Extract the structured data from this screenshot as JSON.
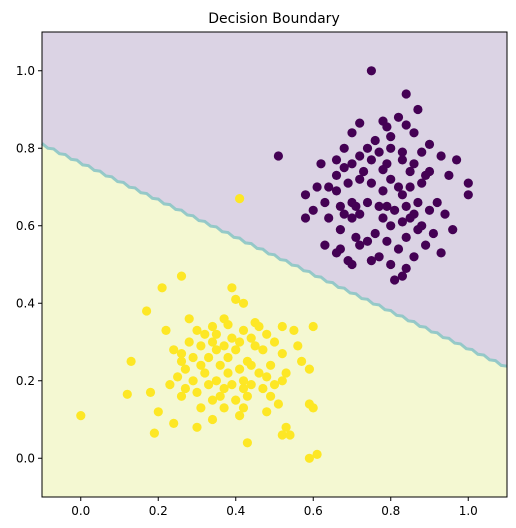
{
  "chart_data": {
    "type": "scatter",
    "title": "Decision Boundary",
    "xlabel": "",
    "ylabel": "",
    "xlim": [
      -0.1,
      1.1
    ],
    "ylim": [
      -0.1,
      1.1
    ],
    "grid": false,
    "x_ticks": [
      "0.0",
      "0.2",
      "0.4",
      "0.6",
      "0.8",
      "1.0"
    ],
    "y_ticks": [
      "0.0",
      "0.2",
      "0.4",
      "0.6",
      "0.8",
      "1.0"
    ],
    "boundary": {
      "line": [
        [
          -0.1,
          0.81
        ],
        [
          1.1,
          0.235
        ]
      ],
      "region_above_color": "#dbd3e4",
      "region_below_color": "#f4f8d2",
      "line_color": "#8cc5c5"
    },
    "series": [
      {
        "color": "#440154",
        "points": [
          [
            0.75,
            1.0
          ],
          [
            0.84,
            0.94
          ],
          [
            0.87,
            0.9
          ],
          [
            0.82,
            0.88
          ],
          [
            0.78,
            0.87
          ],
          [
            0.72,
            0.865
          ],
          [
            0.79,
            0.855
          ],
          [
            0.84,
            0.86
          ],
          [
            0.7,
            0.84
          ],
          [
            0.8,
            0.83
          ],
          [
            0.86,
            0.84
          ],
          [
            0.76,
            0.82
          ],
          [
            0.68,
            0.8
          ],
          [
            0.74,
            0.8
          ],
          [
            0.8,
            0.8
          ],
          [
            0.83,
            0.79
          ],
          [
            0.9,
            0.81
          ],
          [
            0.72,
            0.78
          ],
          [
            0.77,
            0.79
          ],
          [
            0.51,
            0.78
          ],
          [
            0.88,
            0.79
          ],
          [
            0.93,
            0.78
          ],
          [
            0.97,
            0.77
          ],
          [
            0.66,
            0.77
          ],
          [
            0.75,
            0.77
          ],
          [
            0.83,
            0.77
          ],
          [
            0.62,
            0.76
          ],
          [
            0.7,
            0.76
          ],
          [
            0.79,
            0.76
          ],
          [
            0.86,
            0.76
          ],
          [
            0.68,
            0.75
          ],
          [
            0.73,
            0.74
          ],
          [
            0.78,
            0.745
          ],
          [
            0.85,
            0.74
          ],
          [
            0.9,
            0.74
          ],
          [
            0.66,
            0.73
          ],
          [
            0.89,
            0.73
          ],
          [
            0.95,
            0.73
          ],
          [
            0.72,
            0.72
          ],
          [
            0.8,
            0.72
          ],
          [
            0.61,
            0.7
          ],
          [
            0.64,
            0.7
          ],
          [
            0.69,
            0.71
          ],
          [
            0.75,
            0.71
          ],
          [
            0.82,
            0.7
          ],
          [
            0.85,
            0.7
          ],
          [
            0.88,
            0.71
          ],
          [
            1.0,
            0.71
          ],
          [
            0.58,
            0.68
          ],
          [
            0.66,
            0.69
          ],
          [
            0.78,
            0.69
          ],
          [
            0.83,
            0.68
          ],
          [
            1.0,
            0.68
          ],
          [
            0.63,
            0.66
          ],
          [
            0.7,
            0.66
          ],
          [
            0.74,
            0.66
          ],
          [
            0.79,
            0.65
          ],
          [
            0.87,
            0.66
          ],
          [
            0.92,
            0.66
          ],
          [
            0.67,
            0.65
          ],
          [
            0.71,
            0.65
          ],
          [
            0.77,
            0.65
          ],
          [
            0.84,
            0.65
          ],
          [
            0.9,
            0.64
          ],
          [
            0.6,
            0.64
          ],
          [
            0.68,
            0.63
          ],
          [
            0.72,
            0.63
          ],
          [
            0.81,
            0.64
          ],
          [
            0.86,
            0.63
          ],
          [
            0.94,
            0.63
          ],
          [
            0.64,
            0.62
          ],
          [
            0.7,
            0.62
          ],
          [
            0.78,
            0.62
          ],
          [
            0.85,
            0.62
          ],
          [
            0.58,
            0.62
          ],
          [
            0.83,
            0.61
          ],
          [
            0.88,
            0.6
          ],
          [
            0.8,
            0.6
          ],
          [
            0.87,
            0.59
          ],
          [
            0.67,
            0.59
          ],
          [
            0.76,
            0.58
          ],
          [
            0.84,
            0.57
          ],
          [
            0.91,
            0.58
          ],
          [
            0.71,
            0.57
          ],
          [
            0.96,
            0.59
          ],
          [
            0.74,
            0.56
          ],
          [
            0.79,
            0.56
          ],
          [
            0.63,
            0.55
          ],
          [
            0.72,
            0.55
          ],
          [
            0.89,
            0.55
          ],
          [
            0.67,
            0.54
          ],
          [
            0.82,
            0.54
          ],
          [
            0.93,
            0.53
          ],
          [
            0.66,
            0.53
          ],
          [
            0.77,
            0.52
          ],
          [
            0.86,
            0.52
          ],
          [
            0.69,
            0.51
          ],
          [
            0.75,
            0.51
          ],
          [
            0.7,
            0.5
          ],
          [
            0.8,
            0.5
          ],
          [
            0.84,
            0.49
          ],
          [
            0.83,
            0.47
          ],
          [
            0.81,
            0.46
          ]
        ]
      },
      {
        "color": "#fde725",
        "points": [
          [
            0.41,
            0.67
          ],
          [
            0.26,
            0.47
          ],
          [
            0.21,
            0.44
          ],
          [
            0.39,
            0.44
          ],
          [
            0.4,
            0.41
          ],
          [
            0.17,
            0.38
          ],
          [
            0.42,
            0.4
          ],
          [
            0.28,
            0.36
          ],
          [
            0.37,
            0.36
          ],
          [
            0.45,
            0.35
          ],
          [
            0.52,
            0.34
          ],
          [
            0.34,
            0.34
          ],
          [
            0.38,
            0.345
          ],
          [
            0.46,
            0.34
          ],
          [
            0.3,
            0.33
          ],
          [
            0.22,
            0.33
          ],
          [
            0.32,
            0.32
          ],
          [
            0.42,
            0.33
          ],
          [
            0.48,
            0.32
          ],
          [
            0.55,
            0.33
          ],
          [
            0.35,
            0.32
          ],
          [
            0.39,
            0.31
          ],
          [
            0.44,
            0.31
          ],
          [
            0.6,
            0.34
          ],
          [
            0.5,
            0.3
          ],
          [
            0.28,
            0.3
          ],
          [
            0.34,
            0.3
          ],
          [
            0.41,
            0.3
          ],
          [
            0.24,
            0.28
          ],
          [
            0.31,
            0.29
          ],
          [
            0.37,
            0.29
          ],
          [
            0.45,
            0.29
          ],
          [
            0.26,
            0.27
          ],
          [
            0.35,
            0.28
          ],
          [
            0.4,
            0.28
          ],
          [
            0.47,
            0.28
          ],
          [
            0.56,
            0.29
          ],
          [
            0.52,
            0.27
          ],
          [
            0.29,
            0.26
          ],
          [
            0.33,
            0.26
          ],
          [
            0.38,
            0.26
          ],
          [
            0.43,
            0.25
          ],
          [
            0.13,
            0.25
          ],
          [
            0.26,
            0.25
          ],
          [
            0.31,
            0.24
          ],
          [
            0.36,
            0.24
          ],
          [
            0.44,
            0.24
          ],
          [
            0.49,
            0.24
          ],
          [
            0.57,
            0.25
          ],
          [
            0.27,
            0.23
          ],
          [
            0.41,
            0.23
          ],
          [
            0.59,
            0.23
          ],
          [
            0.32,
            0.22
          ],
          [
            0.38,
            0.22
          ],
          [
            0.46,
            0.22
          ],
          [
            0.53,
            0.22
          ],
          [
            0.25,
            0.21
          ],
          [
            0.29,
            0.2
          ],
          [
            0.35,
            0.2
          ],
          [
            0.42,
            0.2
          ],
          [
            0.48,
            0.21
          ],
          [
            0.52,
            0.2
          ],
          [
            0.33,
            0.19
          ],
          [
            0.39,
            0.19
          ],
          [
            0.44,
            0.19
          ],
          [
            0.5,
            0.19
          ],
          [
            0.23,
            0.19
          ],
          [
            0.27,
            0.18
          ],
          [
            0.37,
            0.18
          ],
          [
            0.42,
            0.18
          ],
          [
            0.47,
            0.18
          ],
          [
            0.18,
            0.17
          ],
          [
            0.3,
            0.17
          ],
          [
            0.36,
            0.16
          ],
          [
            0.43,
            0.16
          ],
          [
            0.12,
            0.165
          ],
          [
            0.26,
            0.16
          ],
          [
            0.34,
            0.15
          ],
          [
            0.4,
            0.15
          ],
          [
            0.49,
            0.16
          ],
          [
            0.51,
            0.14
          ],
          [
            0.59,
            0.14
          ],
          [
            0.2,
            0.12
          ],
          [
            0.31,
            0.13
          ],
          [
            0.37,
            0.13
          ],
          [
            0.42,
            0.13
          ],
          [
            0.48,
            0.12
          ],
          [
            0.6,
            0.13
          ],
          [
            0.41,
            0.11
          ],
          [
            0.0,
            0.11
          ],
          [
            0.34,
            0.1
          ],
          [
            0.24,
            0.09
          ],
          [
            0.3,
            0.08
          ],
          [
            0.53,
            0.08
          ],
          [
            0.19,
            0.065
          ],
          [
            0.52,
            0.06
          ],
          [
            0.54,
            0.06
          ],
          [
            0.43,
            0.04
          ],
          [
            0.61,
            0.01
          ],
          [
            0.59,
            0.0
          ]
        ]
      }
    ]
  }
}
